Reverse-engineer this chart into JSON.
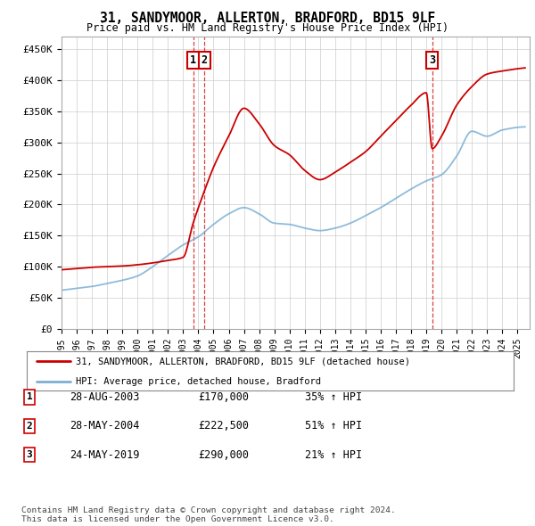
{
  "title": "31, SANDYMOOR, ALLERTON, BRADFORD, BD15 9LF",
  "subtitle": "Price paid vs. HM Land Registry's House Price Index (HPI)",
  "ylabel_ticks": [
    "£0",
    "£50K",
    "£100K",
    "£150K",
    "£200K",
    "£250K",
    "£300K",
    "£350K",
    "£400K",
    "£450K"
  ],
  "ylim": [
    0,
    470000
  ],
  "xlim_start": 1995.0,
  "xlim_end": 2025.8,
  "sale_dates": [
    2003.66,
    2004.41,
    2019.39
  ],
  "sale_prices": [
    170000,
    222500,
    290000
  ],
  "sale_labels": [
    "1",
    "2",
    "3"
  ],
  "legend_line1": "31, SANDYMOOR, ALLERTON, BRADFORD, BD15 9LF (detached house)",
  "legend_line2": "HPI: Average price, detached house, Bradford",
  "table_rows": [
    [
      "1",
      "28-AUG-2003",
      "£170,000",
      "35% ↑ HPI"
    ],
    [
      "2",
      "28-MAY-2004",
      "£222,500",
      "51% ↑ HPI"
    ],
    [
      "3",
      "24-MAY-2019",
      "£290,000",
      "21% ↑ HPI"
    ]
  ],
  "footnote": "Contains HM Land Registry data © Crown copyright and database right 2024.\nThis data is licensed under the Open Government Licence v3.0.",
  "line_color_red": "#cc0000",
  "line_color_blue": "#7bafd4",
  "grid_color": "#cccccc",
  "bg_color": "#ffffff",
  "sale_marker_box_color": "#cc0000",
  "hpi_points_x": [
    1995,
    1996,
    1997,
    1998,
    1999,
    2000,
    2001,
    2002,
    2003,
    2004,
    2005,
    2006,
    2007,
    2008,
    2009,
    2010,
    2011,
    2012,
    2013,
    2014,
    2015,
    2016,
    2017,
    2018,
    2019,
    2020,
    2021,
    2022,
    2023,
    2024,
    2025.5
  ],
  "hpi_points_y": [
    62000,
    65000,
    68000,
    73000,
    78000,
    85000,
    100000,
    118000,
    135000,
    148000,
    168000,
    185000,
    195000,
    185000,
    170000,
    168000,
    162000,
    158000,
    162000,
    170000,
    182000,
    195000,
    210000,
    225000,
    238000,
    248000,
    278000,
    318000,
    310000,
    320000,
    325000
  ],
  "prop_points_x": [
    1995,
    1996,
    1997,
    1998,
    1999,
    2000,
    2001,
    2002,
    2003,
    2003.66,
    2004.41,
    2005,
    2006,
    2007,
    2008,
    2009,
    2010,
    2011,
    2012,
    2013,
    2014,
    2015,
    2016,
    2017,
    2018,
    2019,
    2019.39,
    2020,
    2021,
    2022,
    2023,
    2024,
    2025.5
  ],
  "prop_points_y": [
    95000,
    97000,
    99000,
    100000,
    101000,
    103000,
    106000,
    110000,
    115000,
    170000,
    222500,
    260000,
    310000,
    355000,
    330000,
    295000,
    280000,
    255000,
    240000,
    252000,
    268000,
    285000,
    310000,
    335000,
    360000,
    380000,
    290000,
    310000,
    360000,
    390000,
    410000,
    415000,
    420000
  ]
}
